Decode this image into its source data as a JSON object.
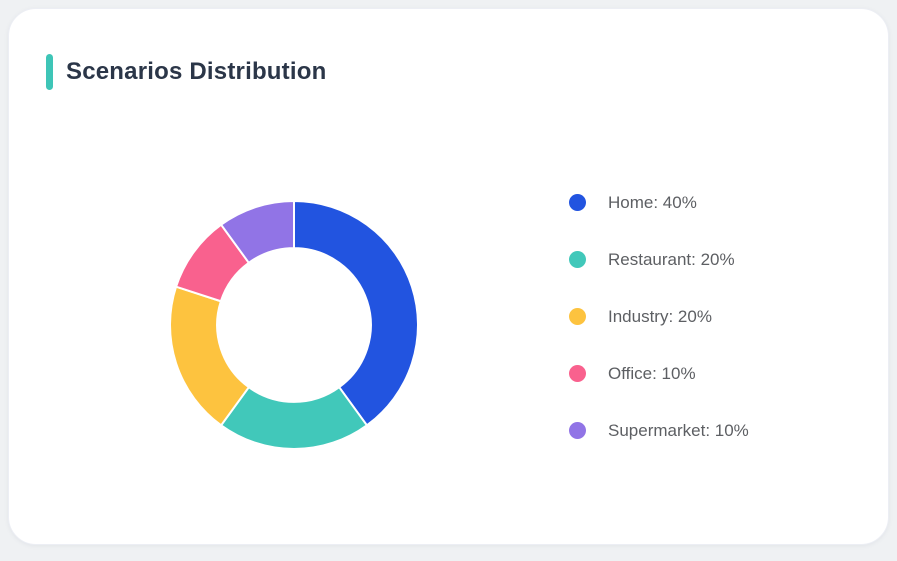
{
  "page": {
    "background_color": "#eff1f3",
    "card_background": "#ffffff"
  },
  "header": {
    "title": "Scenarios Distribution",
    "accent_color": "#3ec5b7",
    "title_color": "#2b3648"
  },
  "chart_data": {
    "type": "pie",
    "variant": "donut",
    "title": "Scenarios Distribution",
    "categories": [
      "Home",
      "Restaurant",
      "Industry",
      "Office",
      "Supermarket"
    ],
    "values": [
      40,
      20,
      20,
      10,
      10
    ],
    "unit": "%",
    "colors": [
      "#2254e0",
      "#41c8ba",
      "#fdc33f",
      "#f9618e",
      "#9174e6"
    ],
    "start_angle_deg": 0,
    "direction": "clockwise",
    "inner_radius_ratio": 0.62,
    "separator_color": "#ffffff",
    "legend_position": "right",
    "legend": [
      {
        "label": "Home: 40%"
      },
      {
        "label": "Restaurant: 20%"
      },
      {
        "label": "Industry: 20%"
      },
      {
        "label": "Office: 10%"
      },
      {
        "label": "Supermarket: 10%"
      }
    ]
  }
}
